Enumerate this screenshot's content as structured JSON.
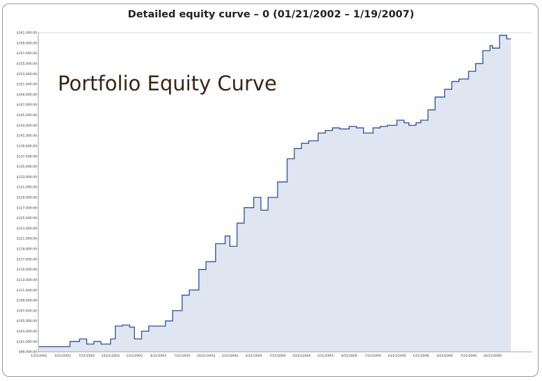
{
  "chart_data": {
    "type": "area",
    "title": "Detailed equity curve – 0 (01/21/2002 – 1/19/2007)",
    "annotation": "Portfolio Equity Curve",
    "xlabel": "",
    "ylabel": "",
    "grid": false,
    "ylim": [
      99000,
      161000
    ],
    "y_tick_labels": [
      "$161,000.00",
      "$159,000.00",
      "$157,000.00",
      "$155,000.00",
      "$153,000.00",
      "$151,000.00",
      "$149,000.00",
      "$147,000.00",
      "$145,000.00",
      "$143,000.00",
      "$141,000.00",
      "$139,000.00",
      "$137,000.00",
      "$135,000.00",
      "$133,000.00",
      "$131,000.00",
      "$129,000.00",
      "$127,000.00",
      "$125,000.00",
      "$123,000.00",
      "$121,000.00",
      "$119,000.00",
      "$117,000.00",
      "$115,000.00",
      "$113,000.00",
      "$111,000.00",
      "$109,000.00",
      "$107,000.00",
      "$105,000.00",
      "$103,000.00",
      "$101,000.00",
      "$99,000.00"
    ],
    "x_tick_labels": [
      "1/21/2002",
      "4/21/2002",
      "7/21/2002",
      "10/21/2002",
      "1/21/2003",
      "4/21/2003",
      "7/21/2003",
      "10/21/2003",
      "1/21/2004",
      "4/21/2004",
      "7/21/2004",
      "10/21/2004",
      "1/21/2005",
      "4/21/2005",
      "7/21/2005",
      "10/21/2005",
      "1/21/2006",
      "4/21/2006",
      "7/21/2006",
      "10/21/2006"
    ],
    "series": [
      {
        "x": [
          0,
          0.5,
          1,
          1.3,
          1.7,
          2,
          2.3,
          2.6,
          3,
          3.2,
          3.5,
          3.8,
          4,
          4.3,
          4.6,
          5,
          5.3,
          5.6,
          6,
          6.3,
          6.7,
          7,
          7.4,
          7.8,
          8,
          8.3,
          8.6,
          9,
          9.3,
          9.6,
          10,
          10.4,
          10.7,
          11,
          11.3,
          11.7,
          12,
          12.3,
          12.6,
          13,
          13.3,
          13.6,
          14,
          14.3,
          14.6,
          15,
          15.3,
          15.5,
          15.8,
          16,
          16.3,
          16.6,
          17,
          17.3,
          17.6,
          18,
          18.3,
          18.6,
          18.9,
          19,
          19.3,
          19.6
        ],
        "values": [
          100000,
          100000,
          100000,
          101000,
          101500,
          100500,
          101000,
          100500,
          101500,
          104000,
          104200,
          103800,
          101500,
          103000,
          104000,
          104000,
          105000,
          107000,
          110000,
          111000,
          115000,
          116500,
          120000,
          121500,
          119500,
          124000,
          127000,
          129000,
          126500,
          129000,
          132000,
          136500,
          138500,
          139500,
          140000,
          141500,
          142000,
          142500,
          142300,
          142800,
          142500,
          141500,
          142500,
          142800,
          143000,
          144000,
          143500,
          143000,
          143500,
          144000,
          146000,
          148500,
          150000,
          151500,
          152000,
          153500,
          155000,
          157500,
          158500,
          158000,
          160500,
          159800
        ]
      }
    ]
  }
}
